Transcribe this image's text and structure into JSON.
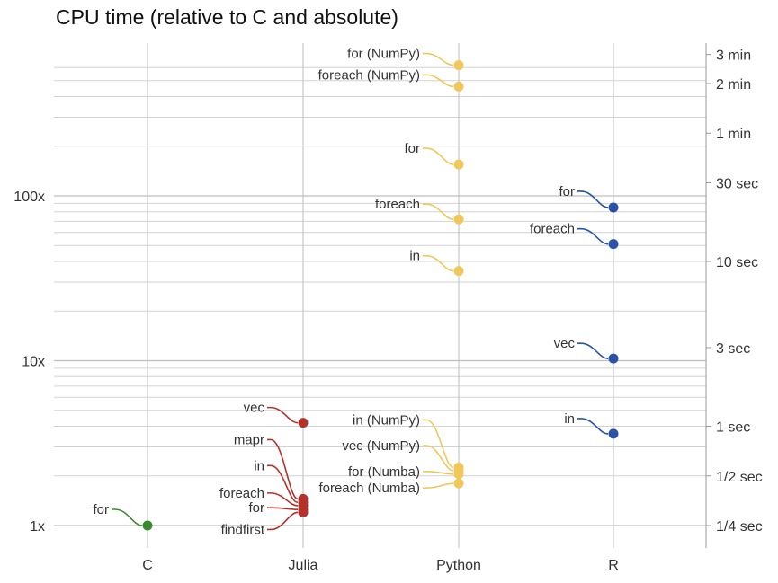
{
  "chart_data": {
    "type": "scatter",
    "title": "CPU time (relative to C and absolute)",
    "y_scale": "log",
    "ylim": [
      0.8,
      650
    ],
    "grid": true,
    "categories": [
      "C",
      "Julia",
      "Python",
      "R"
    ],
    "left_ticks": [
      {
        "value": 1,
        "label": "1x"
      },
      {
        "value": 10,
        "label": "10x"
      },
      {
        "value": 100,
        "label": "100x"
      }
    ],
    "right_ticks": [
      {
        "value": 1,
        "label": "1/4 sec"
      },
      {
        "value": 2,
        "label": "1/2 sec"
      },
      {
        "value": 4,
        "label": "1 sec"
      },
      {
        "value": 12,
        "label": "3 sec"
      },
      {
        "value": 40,
        "label": "10 sec"
      },
      {
        "value": 120,
        "label": "30 sec"
      },
      {
        "value": 240,
        "label": "1 min"
      },
      {
        "value": 480,
        "label": "2 min"
      },
      {
        "value": 720,
        "label": "3 min"
      }
    ],
    "colors": {
      "C": "#3a8a2e",
      "Julia": "#b3322c",
      "Python": "#f0c75a",
      "R": "#2a52a8",
      "grid": "#d2d2d2",
      "category_grid": "#bdbdbd"
    },
    "points": [
      {
        "category": "C",
        "name": "for",
        "value": 1.0
      },
      {
        "category": "Julia",
        "name": "vec",
        "value": 4.2
      },
      {
        "category": "Julia",
        "name": "mapr",
        "value": 1.45
      },
      {
        "category": "Julia",
        "name": "in",
        "value": 1.38
      },
      {
        "category": "Julia",
        "name": "foreach",
        "value": 1.32
      },
      {
        "category": "Julia",
        "name": "for",
        "value": 1.25
      },
      {
        "category": "Julia",
        "name": "findfirst",
        "value": 1.2
      },
      {
        "category": "Python",
        "name": "for (NumPy)",
        "value": 620
      },
      {
        "category": "Python",
        "name": "foreach (NumPy)",
        "value": 460
      },
      {
        "category": "Python",
        "name": "for",
        "value": 155
      },
      {
        "category": "Python",
        "name": "foreach",
        "value": 72
      },
      {
        "category": "Python",
        "name": "in",
        "value": 35
      },
      {
        "category": "Python",
        "name": "in (NumPy)",
        "value": 2.25
      },
      {
        "category": "Python",
        "name": "vec (NumPy)",
        "value": 2.15
      },
      {
        "category": "Python",
        "name": "for (Numba)",
        "value": 2.05
      },
      {
        "category": "Python",
        "name": "foreach (Numba)",
        "value": 1.8
      },
      {
        "category": "R",
        "name": "for",
        "value": 85
      },
      {
        "category": "R",
        "name": "foreach",
        "value": 51
      },
      {
        "category": "R",
        "name": "vec",
        "value": 10.3
      },
      {
        "category": "R",
        "name": "in",
        "value": 3.6
      }
    ]
  }
}
